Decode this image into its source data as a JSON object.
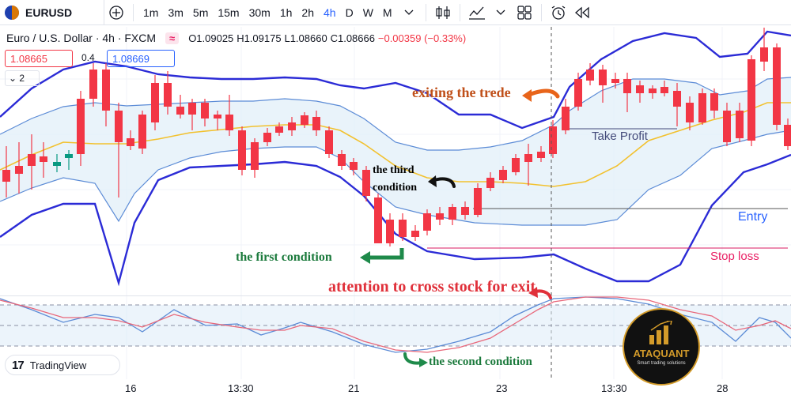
{
  "toolbar": {
    "symbol": "EURUSD",
    "intervals": [
      "1m",
      "3m",
      "5m",
      "15m",
      "30m",
      "1h",
      "2h",
      "4h",
      "D",
      "W",
      "M"
    ],
    "active_interval": "4h"
  },
  "legend": {
    "title": "Euro / U.S. Dollar · 4h · FXCM",
    "compare_glyph": "≈",
    "open": "O1.09025",
    "high": "H1.09175",
    "low": "L1.08660",
    "close": "C1.08666",
    "change": "−0.00359 (−0.33%)",
    "bid": "1.08665",
    "spread": "0.4",
    "ask": "1.08669",
    "collapse": "2"
  },
  "annotations": {
    "exit": "exiting the trede",
    "third_line1": "the third",
    "third_line2": "condition",
    "first": "the first condition",
    "cross": "attention to cross stock for exit",
    "second": "the second condition"
  },
  "levels": {
    "take_profit": "Take Profit",
    "entry": "Entry",
    "stop_loss": "Stop loss"
  },
  "branding": {
    "tradingview": "TradingView",
    "tv_mark": "17",
    "badge_name": "ATAQUANT",
    "badge_sub": "Smart trading solutions"
  },
  "time_axis": [
    "16",
    "13:30",
    "21",
    "23",
    "13:30",
    "28"
  ],
  "colors": {
    "up": "#089981",
    "down": "#f23645",
    "band_outer": "#2b2bd6",
    "band_inner": "#5b8bd6",
    "basis": "#f2c12e",
    "stoch_k": "#5b8bd6",
    "stoch_d": "#e8677a"
  }
}
